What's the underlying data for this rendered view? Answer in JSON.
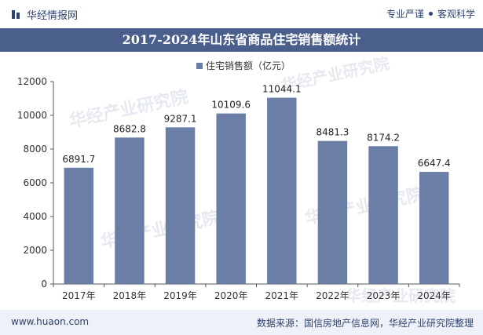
{
  "header": {
    "brand": "华经情报网",
    "slogan_left": "专业严谨",
    "slogan_right": "客观科学"
  },
  "title": "2017-2024年山东省商品住宅销售额统计",
  "chart_data": {
    "type": "bar",
    "title": "2017-2024年山东省商品住宅销售额统计",
    "legend": "住宅销售额（亿元）",
    "categories": [
      "2017年",
      "2018年",
      "2019年",
      "2020年",
      "2021年",
      "2022年",
      "2023年",
      "2024年"
    ],
    "values": [
      6891.7,
      8682.8,
      9287.1,
      10109.6,
      11044.1,
      8481.3,
      8174.2,
      6647.4
    ],
    "value_labels": [
      "6891.7",
      "8682.8",
      "9287.1",
      "10109.6",
      "11044.1",
      "8481.3",
      "8174.2",
      "6647.4"
    ],
    "ylim": [
      0,
      12000
    ],
    "yticks": [
      "0",
      "2000",
      "4000",
      "6000",
      "8000",
      "10000",
      "12000"
    ],
    "color": "#6b7fa6"
  },
  "watermark": "华经产业研究院",
  "footer": {
    "website": "www.huaon.com",
    "source": "数据来源：国信房地产信息网，华经产业研究院整理"
  },
  "colors": {
    "accent": "#4a5f8b",
    "bar": "#6b7fa6",
    "text": "#2e4370"
  }
}
